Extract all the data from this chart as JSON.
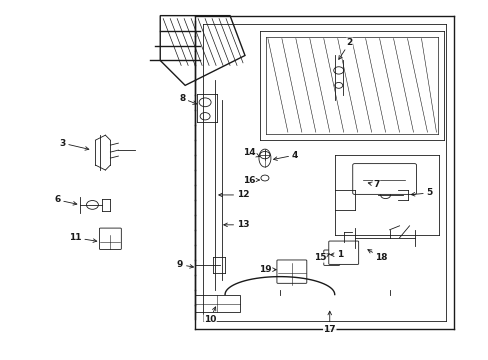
{
  "background_color": "#ffffff",
  "fig_width": 4.89,
  "fig_height": 3.6,
  "dpi": 100,
  "line_color": "#1a1a1a",
  "label_fontsize": 6.5
}
